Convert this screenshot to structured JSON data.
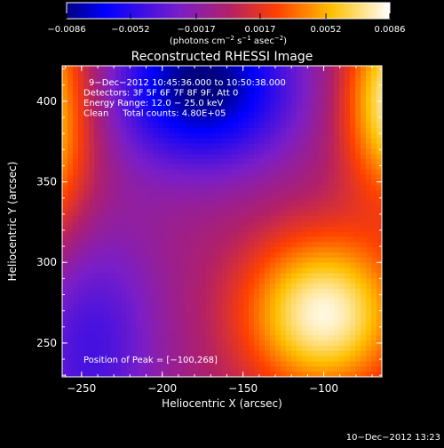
{
  "chart_data": {
    "type": "heatmap",
    "title": "Reconstructed RHESSI Image",
    "xlabel": "Heliocentric X (arcsec)",
    "ylabel": "Heliocentric Y (arcsec)",
    "xlim": [
      -262,
      -64
    ],
    "ylim": [
      229,
      422
    ],
    "xticks": [
      -250,
      -200,
      -150,
      -100
    ],
    "xtick_labels": [
      "−250",
      "−200",
      "−150",
      "−100"
    ],
    "yticks": [
      250,
      300,
      350,
      400
    ],
    "ytick_labels": [
      "250",
      "300",
      "350",
      "400"
    ],
    "colorbar": {
      "range": [
        -0.0086,
        0.0086
      ],
      "ticks": [
        -0.0086,
        -0.0052,
        -0.0017,
        0.0017,
        0.0052,
        0.0086
      ],
      "tick_labels": [
        "−0.0086",
        "−0.0052",
        "−0.0017",
        "0.0017",
        "0.0052",
        "0.0086"
      ],
      "unit_prefix": "(photons cm",
      "unit_exp1": "−2",
      "unit_mid": " s",
      "unit_exp2": "−1",
      "unit_mid2": " asec",
      "unit_exp3": "−2",
      "unit_suffix": ")"
    },
    "annotations": [
      "9−Dec−2012 10:45:36.000 to 10:50:38.000",
      "Detectors: 3F 5F 6F 7F 8F 9F, Att 0",
      "Energy Range: 12.0 − 25.0 keV",
      "Clean     Total counts: 4.80E+05"
    ],
    "peak_label": "Position of Peak = [−100,268]",
    "peak": [
      -100,
      268
    ],
    "sources": [
      {
        "x": -100,
        "y": 268,
        "sx": 34,
        "sy": 34,
        "amp": 0.0086
      },
      {
        "x": -55,
        "y": 400,
        "sx": 22,
        "sy": 40,
        "amp": 0.0085
      },
      {
        "x": -280,
        "y": 390,
        "sx": 25,
        "sy": 55,
        "amp": 0.008
      },
      {
        "x": -175,
        "y": 410,
        "sx": 40,
        "sy": 35,
        "amp": -0.0085
      },
      {
        "x": -245,
        "y": 250,
        "sx": 30,
        "sy": 55,
        "amp": -0.004
      }
    ],
    "grid": false
  },
  "footer": {
    "timestamp": "10−Dec−2012 13:23"
  }
}
